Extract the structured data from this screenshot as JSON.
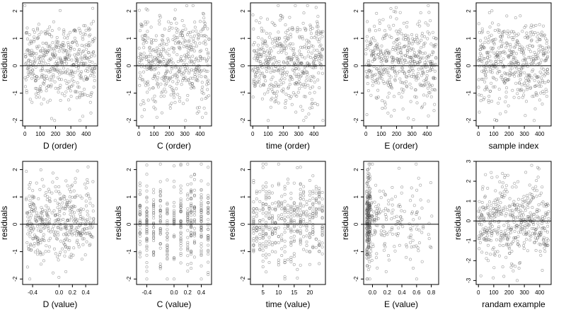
{
  "chart_data": [
    {
      "type": "scatter",
      "xlabel": "D (order)",
      "ylabel": "residuals",
      "xlim": [
        -15,
        475
      ],
      "ylim": [
        -2.2,
        2.3
      ],
      "xticks": [
        0,
        100,
        200,
        300,
        400
      ],
      "yticks": [
        -2,
        -1,
        0,
        1,
        2
      ],
      "hline": 0,
      "points": "uniform-x",
      "n_points": 460,
      "y_range": [
        -2.0,
        2.2
      ]
    },
    {
      "type": "scatter",
      "xlabel": "C (order)",
      "ylabel": "residuals",
      "xlim": [
        -15,
        475
      ],
      "ylim": [
        -2.2,
        2.3
      ],
      "xticks": [
        0,
        100,
        200,
        300,
        400
      ],
      "yticks": [
        -2,
        -1,
        0,
        1,
        2
      ],
      "hline": 0,
      "points": "uniform-x",
      "n_points": 460,
      "y_range": [
        -2.0,
        2.2
      ]
    },
    {
      "type": "scatter",
      "xlabel": "time (order)",
      "ylabel": "residuals",
      "xlim": [
        -15,
        475
      ],
      "ylim": [
        -2.2,
        2.3
      ],
      "xticks": [
        0,
        100,
        200,
        300,
        400
      ],
      "yticks": [
        -2,
        -1,
        0,
        1,
        2
      ],
      "hline": 0,
      "points": "uniform-x",
      "n_points": 460,
      "y_range": [
        -2.0,
        2.2
      ]
    },
    {
      "type": "scatter",
      "xlabel": "E (order)",
      "ylabel": "residuals",
      "xlim": [
        -15,
        475
      ],
      "ylim": [
        -2.2,
        2.3
      ],
      "xticks": [
        0,
        100,
        200,
        300,
        400
      ],
      "yticks": [
        -2,
        -1,
        0,
        1,
        2
      ],
      "hline": 0,
      "points": "uniform-x",
      "n_points": 460,
      "y_range": [
        -2.0,
        2.2
      ]
    },
    {
      "type": "scatter",
      "xlabel": "sample index",
      "ylabel": "residuals",
      "xlim": [
        -15,
        475
      ],
      "ylim": [
        -2.2,
        2.3
      ],
      "xticks": [
        0,
        100,
        200,
        300,
        400
      ],
      "yticks": [
        -2,
        -1,
        0,
        1,
        2
      ],
      "hline": 0,
      "points": "uniform-x",
      "n_points": 460,
      "y_range": [
        -2.0,
        2.2
      ]
    },
    {
      "type": "scatter",
      "xlabel": "D (value)",
      "ylabel": "residuals",
      "xlim": [
        -0.55,
        0.58
      ],
      "ylim": [
        -2.2,
        2.3
      ],
      "xticks": [
        -0.4,
        0.0,
        0.2,
        0.4
      ],
      "xtick_labels": [
        "-0.4",
        "0.0",
        "0.2",
        "0.4"
      ],
      "yticks": [
        -2,
        -1,
        0,
        1,
        2
      ],
      "hline": 0,
      "points": "spread",
      "n_points": 420,
      "x_range": [
        -0.5,
        0.52
      ],
      "y_range": [
        -2.0,
        2.1
      ]
    },
    {
      "type": "scatter",
      "xlabel": "C (value)",
      "ylabel": "residuals",
      "xlim": [
        -0.55,
        0.55
      ],
      "ylim": [
        -2.2,
        2.3
      ],
      "xticks": [
        -0.4,
        0.0,
        0.2,
        0.4
      ],
      "xtick_labels": [
        "-0.4",
        "0.0",
        "0.2",
        "0.4"
      ],
      "yticks": [
        -2,
        -1,
        0,
        1,
        2
      ],
      "hline": 0,
      "points": "columns",
      "n_points": 420,
      "x_columns": [
        -0.5,
        -0.4,
        -0.3,
        -0.2,
        -0.1,
        0.0,
        0.1,
        0.2,
        0.25,
        0.3,
        0.4,
        0.5
      ],
      "y_range": [
        -2.0,
        2.2
      ]
    },
    {
      "type": "scatter",
      "xlabel": "time (value)",
      "ylabel": "residuals",
      "xlim": [
        1,
        25
      ],
      "ylim": [
        -2.2,
        2.3
      ],
      "xticks": [
        5,
        10,
        15,
        20
      ],
      "xtick_labels": [
        "5",
        "10",
        "15",
        "20"
      ],
      "yticks": [
        -2,
        -1,
        0,
        1,
        2
      ],
      "hline": 0,
      "points": "columns",
      "n_points": 430,
      "x_columns": [
        2,
        3,
        4,
        5,
        6,
        7,
        8,
        9,
        10,
        11,
        12,
        13,
        14,
        15,
        16,
        17,
        18,
        19,
        20,
        21,
        22,
        23,
        24
      ],
      "y_range": [
        -2.0,
        2.2
      ]
    },
    {
      "type": "scatter",
      "xlabel": "E (value)",
      "ylabel": "residuals",
      "xlim": [
        -0.12,
        0.9
      ],
      "ylim": [
        -2.2,
        2.3
      ],
      "xticks": [
        0.0,
        0.2,
        0.4,
        0.6,
        0.8
      ],
      "xtick_labels": [
        "0.0",
        "0.2",
        "0.4",
        "0.6",
        "0.8"
      ],
      "yticks": [
        -2,
        -1,
        0,
        1,
        2
      ],
      "hline": 0,
      "points": "skewed",
      "n_points": 400,
      "x_range": [
        -0.08,
        0.82
      ],
      "y_range": [
        -2.0,
        2.2
      ]
    },
    {
      "type": "scatter",
      "xlabel": "randam example",
      "ylabel": "residuals",
      "xlim": [
        -15,
        475
      ],
      "ylim": [
        -3.2,
        3.0
      ],
      "xticks": [
        0,
        100,
        200,
        300,
        400
      ],
      "yticks": [
        -3,
        -2,
        -1,
        0,
        1,
        2,
        3
      ],
      "hline": 0,
      "points": "uniform-x",
      "n_points": 460,
      "y_range": [
        -3.0,
        2.8
      ]
    }
  ],
  "colors": {
    "point": "#555555",
    "frame": "#000000",
    "zero_line": "#000000"
  }
}
